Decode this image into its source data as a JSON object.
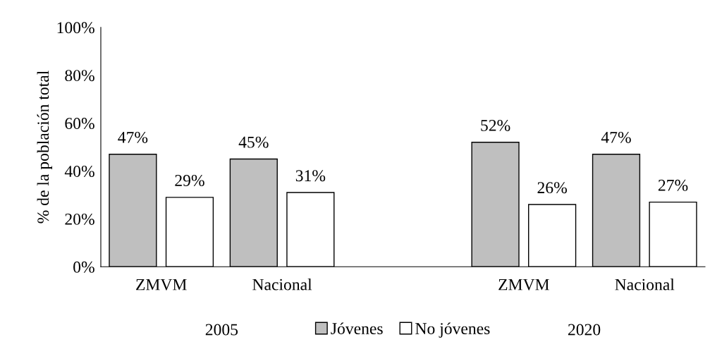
{
  "chart_data": {
    "type": "bar",
    "ylabel": "% de la población total",
    "categories": [
      "ZMVM",
      "Nacional",
      null,
      "ZMVM",
      "Nacional"
    ],
    "series": [
      {
        "name": "Jóvenes",
        "color": "#bfbfbf",
        "values": [
          47,
          45,
          null,
          52,
          47
        ],
        "value_labels": [
          "47%",
          "45%",
          null,
          "52%",
          "47%"
        ]
      },
      {
        "name": "No jóvenes",
        "color": "#ffffff",
        "values": [
          29,
          31,
          null,
          26,
          27
        ],
        "value_labels": [
          "29%",
          "31%",
          null,
          "26%",
          "27%"
        ]
      }
    ],
    "ylim": [
      0,
      100
    ],
    "yticks": [
      {
        "value": 0,
        "label": "0%"
      },
      {
        "value": 20,
        "label": "20%"
      },
      {
        "value": 40,
        "label": "40%"
      },
      {
        "value": 60,
        "label": "60%"
      },
      {
        "value": 80,
        "label": "80%"
      },
      {
        "value": 100,
        "label": "100%"
      }
    ],
    "annotations": [
      "2005",
      "2020"
    ],
    "grid": false,
    "legend": "bottom"
  }
}
